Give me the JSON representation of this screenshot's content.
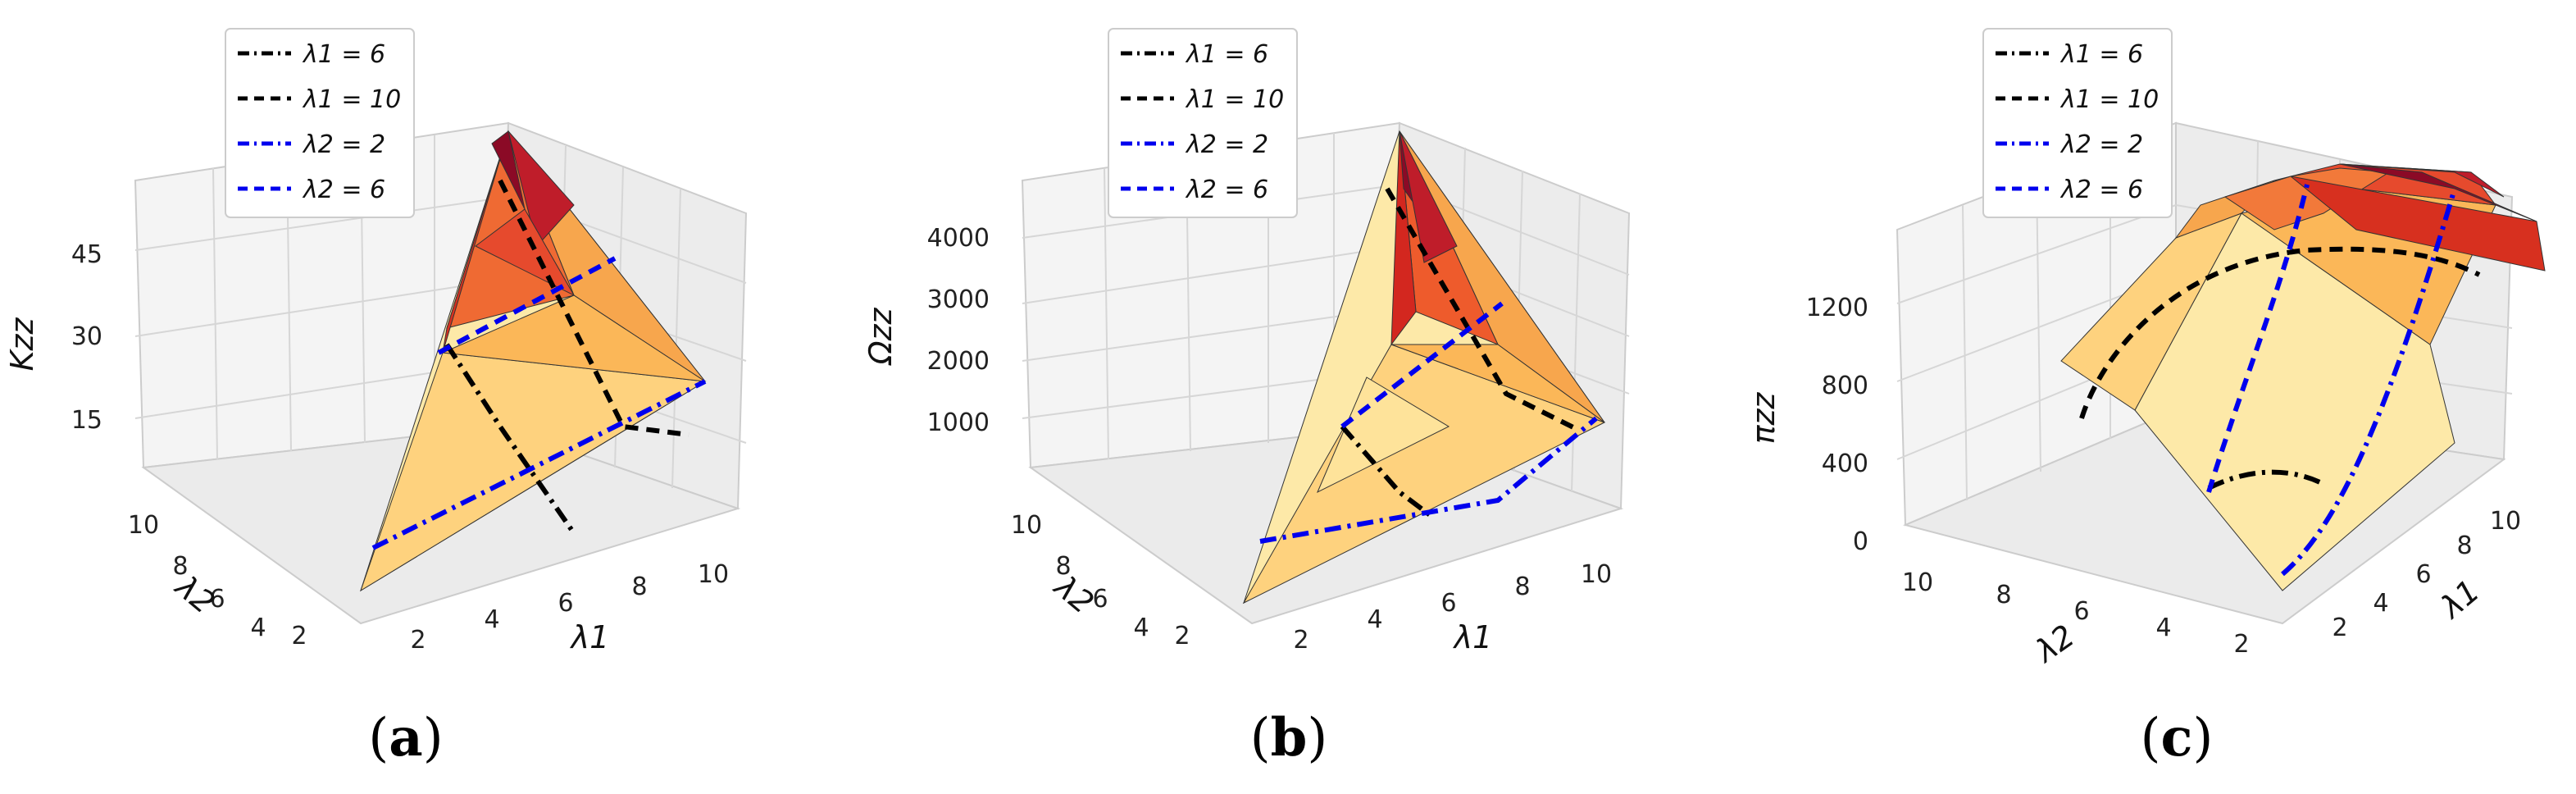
{
  "chart_data": [
    {
      "type": "surface3d",
      "panel_label": "a",
      "zlabel": "Kzz",
      "xlabel": "λ1",
      "ylabel": "λ2",
      "xticks": [
        "2",
        "4",
        "6",
        "8",
        "10"
      ],
      "yticks": [
        "2",
        "4",
        "6",
        "8",
        "10"
      ],
      "zticks": [
        "15",
        "30",
        "45"
      ],
      "zlim": [
        0,
        60
      ],
      "colormap": "YlOrRd",
      "legend": [
        {
          "label": "λ1 = 6",
          "color": "#000000",
          "style": "dashdot"
        },
        {
          "label": "λ1 = 10",
          "color": "#000000",
          "style": "dashed"
        },
        {
          "label": "λ2 = 2",
          "color": "#0000ee",
          "style": "dashdot"
        },
        {
          "label": "λ2 = 6",
          "color": "#0000ee",
          "style": "dashed"
        }
      ]
    },
    {
      "type": "surface3d",
      "panel_label": "b",
      "zlabel": "Ωzz",
      "xlabel": "λ1",
      "ylabel": "λ2",
      "xticks": [
        "2",
        "4",
        "6",
        "8",
        "10"
      ],
      "yticks": [
        "2",
        "4",
        "6",
        "8",
        "10"
      ],
      "zticks": [
        "1000",
        "2000",
        "3000",
        "4000"
      ],
      "zlim": [
        0,
        5000
      ],
      "colormap": "YlOrRd",
      "legend": [
        {
          "label": "λ1 = 6",
          "color": "#000000",
          "style": "dashdot"
        },
        {
          "label": "λ1 = 10",
          "color": "#000000",
          "style": "dashed"
        },
        {
          "label": "λ2 = 2",
          "color": "#0000ee",
          "style": "dashdot"
        },
        {
          "label": "λ2 = 6",
          "color": "#0000ee",
          "style": "dashed"
        }
      ]
    },
    {
      "type": "surface3d",
      "panel_label": "c",
      "zlabel": "πzz",
      "xlabel": "λ1",
      "ylabel": "λ2",
      "xticks": [
        "2",
        "4",
        "6",
        "8",
        "10"
      ],
      "yticks": [
        "10",
        "8",
        "6",
        "4",
        "2"
      ],
      "zticks": [
        "0",
        "400",
        "800",
        "1200"
      ],
      "zlim": [
        0,
        1600
      ],
      "colormap": "YlOrRd",
      "legend": [
        {
          "label": "λ1 = 6",
          "color": "#000000",
          "style": "dashdot"
        },
        {
          "label": "λ1 = 10",
          "color": "#000000",
          "style": "dashed"
        },
        {
          "label": "λ2 = 2",
          "color": "#0000ee",
          "style": "dashdot"
        },
        {
          "label": "λ2 = 6",
          "color": "#0000ee",
          "style": "dashed"
        }
      ]
    }
  ]
}
